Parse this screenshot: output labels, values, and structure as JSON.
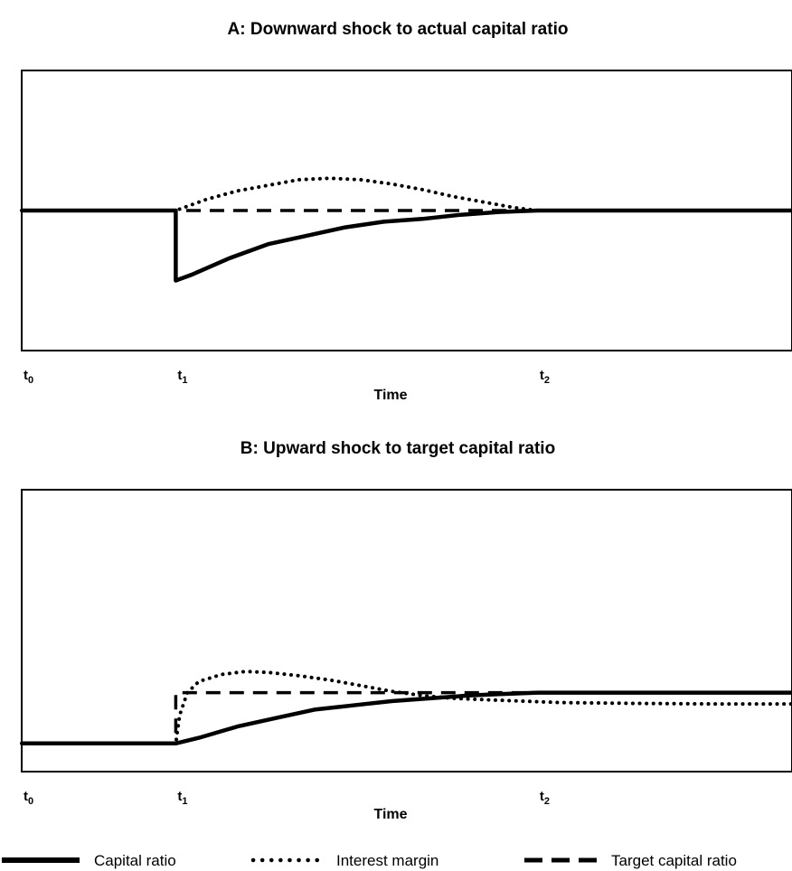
{
  "chart_data": [
    {
      "type": "line",
      "title": "A: Downward shock to actual capital ratio",
      "xlabel": "Time",
      "ylabel": "",
      "xlim": [
        0,
        1
      ],
      "ylim": [
        0,
        1
      ],
      "grid": false,
      "x_ticks": [
        {
          "label": "t",
          "sub": "0",
          "x": 0.0
        },
        {
          "label": "t",
          "sub": "1",
          "x": 0.2
        },
        {
          "label": "t",
          "sub": "2",
          "x": 0.67
        }
      ],
      "series": [
        {
          "name": "Capital ratio",
          "style": "solid",
          "points": [
            [
              0,
              0.5
            ],
            [
              0.2,
              0.5
            ],
            [
              0.2,
              0.25
            ],
            [
              0.22,
              0.27
            ],
            [
              0.27,
              0.33
            ],
            [
              0.32,
              0.38
            ],
            [
              0.37,
              0.41
            ],
            [
              0.42,
              0.44
            ],
            [
              0.47,
              0.46
            ],
            [
              0.52,
              0.47
            ],
            [
              0.57,
              0.485
            ],
            [
              0.62,
              0.495
            ],
            [
              0.67,
              0.5
            ],
            [
              1.0,
              0.5
            ]
          ]
        },
        {
          "name": "Interest margin",
          "style": "dotted",
          "points": [
            [
              0,
              0.5
            ],
            [
              0.2,
              0.5
            ],
            [
              0.24,
              0.54
            ],
            [
              0.28,
              0.57
            ],
            [
              0.32,
              0.59
            ],
            [
              0.36,
              0.61
            ],
            [
              0.4,
              0.615
            ],
            [
              0.44,
              0.61
            ],
            [
              0.48,
              0.595
            ],
            [
              0.52,
              0.575
            ],
            [
              0.56,
              0.55
            ],
            [
              0.6,
              0.53
            ],
            [
              0.64,
              0.51
            ],
            [
              0.67,
              0.5
            ],
            [
              1.0,
              0.5
            ]
          ]
        },
        {
          "name": "Target capital ratio",
          "style": "dashed",
          "points": [
            [
              0,
              0.5
            ],
            [
              1.0,
              0.5
            ]
          ]
        }
      ]
    },
    {
      "type": "line",
      "title": "B: Upward shock to target capital ratio",
      "xlabel": "Time",
      "ylabel": "",
      "xlim": [
        0,
        1
      ],
      "ylim": [
        0,
        1
      ],
      "grid": false,
      "x_ticks": [
        {
          "label": "t",
          "sub": "0",
          "x": 0.0
        },
        {
          "label": "t",
          "sub": "1",
          "x": 0.2
        },
        {
          "label": "t",
          "sub": "2",
          "x": 0.67
        }
      ],
      "series": [
        {
          "name": "Capital ratio",
          "style": "solid",
          "points": [
            [
              0,
              0.1
            ],
            [
              0.2,
              0.1
            ],
            [
              0.23,
              0.12
            ],
            [
              0.28,
              0.16
            ],
            [
              0.33,
              0.19
            ],
            [
              0.38,
              0.22
            ],
            [
              0.43,
              0.235
            ],
            [
              0.48,
              0.25
            ],
            [
              0.53,
              0.26
            ],
            [
              0.58,
              0.27
            ],
            [
              0.62,
              0.275
            ],
            [
              0.67,
              0.28
            ],
            [
              1.0,
              0.28
            ]
          ]
        },
        {
          "name": "Interest margin",
          "style": "dotted",
          "points": [
            [
              0,
              0.1
            ],
            [
              0.2,
              0.1
            ],
            [
              0.205,
              0.2
            ],
            [
              0.215,
              0.28
            ],
            [
              0.23,
              0.32
            ],
            [
              0.26,
              0.345
            ],
            [
              0.29,
              0.355
            ],
            [
              0.32,
              0.352
            ],
            [
              0.36,
              0.34
            ],
            [
              0.4,
              0.325
            ],
            [
              0.44,
              0.305
            ],
            [
              0.48,
              0.285
            ],
            [
              0.52,
              0.27
            ],
            [
              0.56,
              0.26
            ],
            [
              0.6,
              0.255
            ],
            [
              0.65,
              0.25
            ],
            [
              0.7,
              0.245
            ],
            [
              0.8,
              0.242
            ],
            [
              0.9,
              0.24
            ],
            [
              1.0,
              0.24
            ]
          ]
        },
        {
          "name": "Target capital ratio",
          "style": "dashed",
          "points": [
            [
              0,
              0.1
            ],
            [
              0.2,
              0.1
            ],
            [
              0.2,
              0.28
            ],
            [
              1.0,
              0.28
            ]
          ]
        }
      ]
    }
  ],
  "legend": {
    "placement": "bottom",
    "items": [
      {
        "label": "Capital ratio",
        "style": "solid"
      },
      {
        "label": "Interest margin",
        "style": "dotted"
      },
      {
        "label": "Target capital ratio",
        "style": "dashed"
      }
    ]
  },
  "colors": {
    "line": "#000000",
    "background": "#ffffff"
  }
}
